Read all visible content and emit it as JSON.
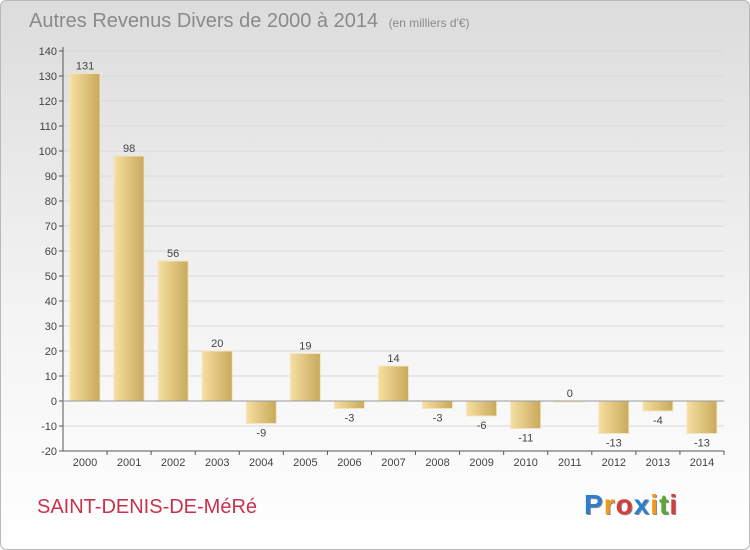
{
  "header": {
    "title": "Autres Revenus Divers de 2000 à 2014",
    "subtitle": "(en milliers d'€)"
  },
  "footer": {
    "commune": "SAINT-DENIS-DE-MéRé",
    "logo_text": "Proxiti",
    "logo_colors": [
      "#2a7fd0",
      "#f09a1c",
      "#d63a3a",
      "#2a7fd0",
      "#f09a1c",
      "#5aa832",
      "#d63a3a"
    ]
  },
  "colors": {
    "bar_light": "#f7dfa0",
    "bar_dark": "#c8a95c",
    "axis": "#555555",
    "grid": "#d8d8d8",
    "text": "#444444"
  },
  "chart_data": {
    "type": "bar",
    "title": "Autres Revenus Divers de 2000 à 2014",
    "subtitle": "(en milliers d'€)",
    "xlabel": "",
    "ylabel": "",
    "categories": [
      "2000",
      "2001",
      "2002",
      "2003",
      "2004",
      "2005",
      "2006",
      "2007",
      "2008",
      "2009",
      "2010",
      "2011",
      "2012",
      "2013",
      "2014"
    ],
    "values": [
      131,
      98,
      56,
      20,
      -9,
      19,
      -3,
      14,
      -3,
      -6,
      -11,
      0,
      -13,
      -4,
      -13
    ],
    "value_labels": [
      "131",
      "98",
      "56",
      "20",
      "-9",
      "19",
      "-3",
      "14",
      "-3",
      "-6",
      "-11",
      "0",
      "-13",
      "-4",
      "-13"
    ],
    "ylim": [
      -20,
      140
    ],
    "yticks": [
      -20,
      -10,
      0,
      10,
      20,
      30,
      40,
      50,
      60,
      70,
      80,
      90,
      100,
      110,
      120,
      130,
      140
    ],
    "grid": true,
    "legend": "none"
  }
}
